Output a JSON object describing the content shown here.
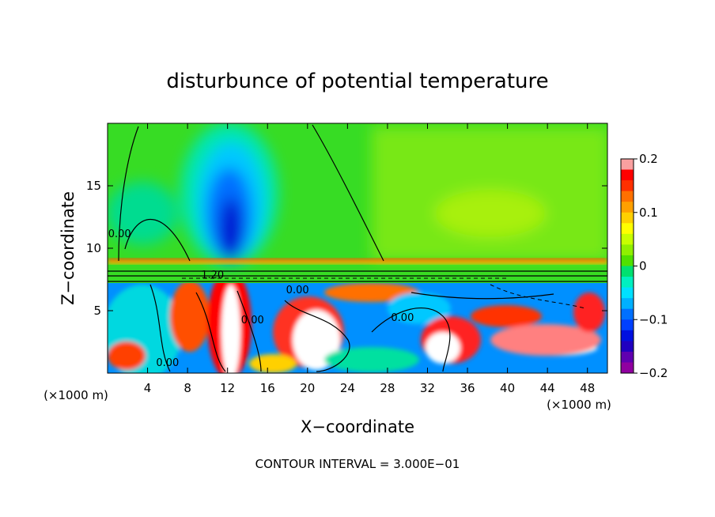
{
  "chart_data": {
    "type": "heatmap",
    "title": "disturbunce of potential temperature",
    "xlabel": "X−coordinate",
    "ylabel": "Z−coordinate",
    "x_unit_left": "(×1000 m)",
    "x_unit_right": "(×1000 m)",
    "xlim": [
      0,
      50
    ],
    "ylim": [
      0,
      20
    ],
    "xticks": [
      4,
      8,
      12,
      16,
      20,
      24,
      28,
      32,
      36,
      40,
      44,
      48
    ],
    "yticks": [
      5,
      10,
      15
    ],
    "xtick_labels": [
      "4",
      "8",
      "12",
      "16",
      "20",
      "24",
      "28",
      "32",
      "36",
      "40",
      "44",
      "48"
    ],
    "ytick_labels": [
      "5",
      "10",
      "15"
    ],
    "colorbar": {
      "range": [
        -0.2,
        0.2
      ],
      "ticks": [
        0.2,
        0.1,
        0,
        -0.1,
        -0.2
      ],
      "tick_labels": [
        "0.2",
        "0.1",
        "0",
        "−0.1",
        "−0.2"
      ],
      "colors": [
        "#f9a0a0",
        "#ff0000",
        "#ff3000",
        "#ff7000",
        "#ffa000",
        "#ffd000",
        "#ffff00",
        "#c8ff00",
        "#90f000",
        "#50e000",
        "#00e070",
        "#00f0c0",
        "#00e0ff",
        "#00b0ff",
        "#0070ff",
        "#0040ff",
        "#0010e0",
        "#2000c0",
        "#6000b0",
        "#9000a0"
      ]
    },
    "contour_labels": [
      {
        "text": "0.00",
        "x": 1.2,
        "z": 11.2
      },
      {
        "text": "1.20",
        "x": 10.5,
        "z": 7.9
      },
      {
        "text": "0.00",
        "x": 19.0,
        "z": 6.7
      },
      {
        "text": "0.00",
        "x": 14.5,
        "z": 4.3
      },
      {
        "text": "0.00",
        "x": 29.5,
        "z": 4.5
      },
      {
        "text": "0.00",
        "x": 6.0,
        "z": 0.9
      }
    ],
    "footer": "CONTOUR INTERVAL = 3.000E−01"
  }
}
